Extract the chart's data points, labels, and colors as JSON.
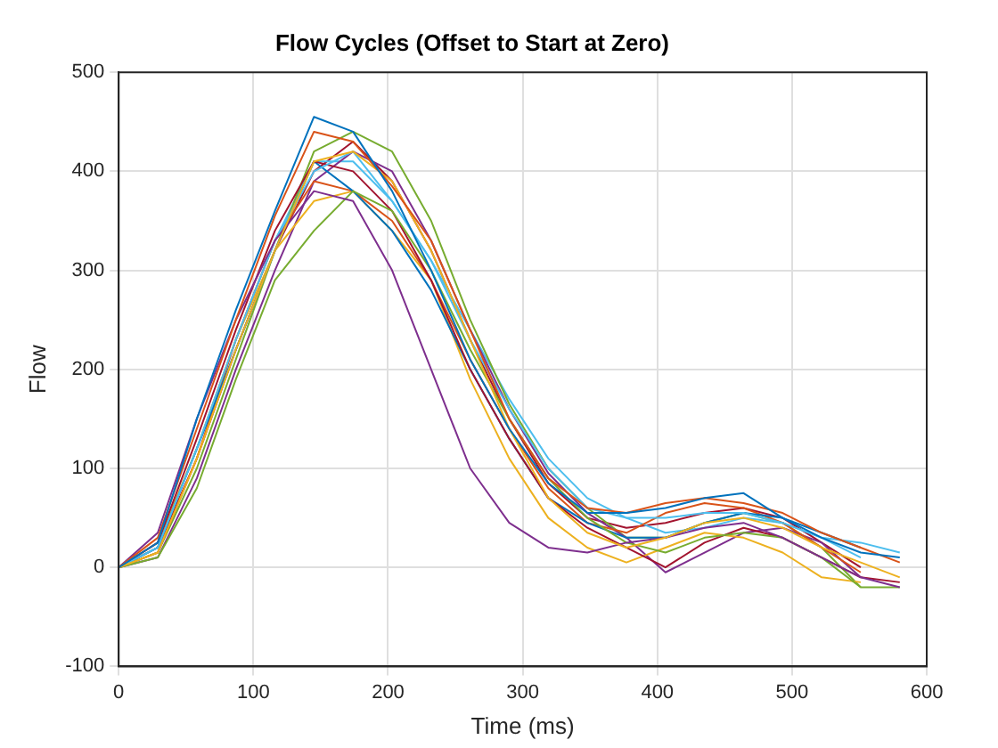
{
  "chart_data": {
    "type": "line",
    "title": "Flow Cycles (Offset to Start at Zero)",
    "xlabel": "Time (ms)",
    "ylabel": "Flow",
    "x": [
      0,
      29,
      58,
      87,
      116,
      145,
      174,
      203,
      232,
      261,
      290,
      319,
      348,
      377,
      406,
      435,
      464,
      493,
      522,
      551,
      580
    ],
    "xlim": [
      0,
      600
    ],
    "xticks": [
      0,
      100,
      200,
      300,
      400,
      500,
      600
    ],
    "ylim": [
      -100,
      500
    ],
    "yticks": [
      -100,
      0,
      100,
      200,
      300,
      400,
      500
    ],
    "grid": true,
    "legend": false,
    "marker": "none",
    "line_style": "solid",
    "series": [
      {
        "color": "#0072bd",
        "values": [
          0,
          25,
          150,
          260,
          360,
          455,
          440,
          380,
          300,
          210,
          140,
          85,
          55,
          55,
          60,
          70,
          75,
          50,
          30,
          15,
          10
        ]
      },
      {
        "color": "#d95319",
        "values": [
          0,
          30,
          140,
          250,
          355,
          440,
          430,
          385,
          330,
          240,
          150,
          90,
          60,
          55,
          65,
          70,
          65,
          55,
          35,
          20,
          5
        ]
      },
      {
        "color": "#edb120",
        "values": [
          0,
          15,
          110,
          220,
          320,
          410,
          420,
          390,
          320,
          230,
          140,
          70,
          35,
          20,
          30,
          45,
          50,
          40,
          20,
          5,
          -10
        ]
      },
      {
        "color": "#7e2f8e",
        "values": [
          0,
          35,
          150,
          250,
          330,
          380,
          370,
          300,
          200,
          100,
          45,
          20,
          15,
          25,
          30,
          40,
          45,
          30,
          10,
          -10,
          -20
        ]
      },
      {
        "color": "#77ac30",
        "values": [
          0,
          10,
          80,
          190,
          290,
          340,
          380,
          360,
          300,
          220,
          150,
          90,
          50,
          25,
          15,
          30,
          35,
          30,
          10,
          -20,
          -20
        ]
      },
      {
        "color": "#4dbeee",
        "values": [
          0,
          20,
          120,
          230,
          330,
          400,
          420,
          370,
          310,
          230,
          160,
          100,
          60,
          50,
          50,
          55,
          55,
          45,
          30,
          25,
          15
        ]
      },
      {
        "color": "#a2142f",
        "values": [
          0,
          25,
          130,
          240,
          340,
          410,
          400,
          360,
          290,
          200,
          130,
          70,
          40,
          20,
          0,
          25,
          40,
          30,
          10,
          -10,
          -15
        ]
      },
      {
        "color": "#0072bd",
        "values": [
          0,
          20,
          120,
          220,
          320,
          410,
          380,
          340,
          280,
          200,
          130,
          70,
          45,
          30,
          30,
          45,
          55,
          50,
          35,
          20,
          null
        ]
      },
      {
        "color": "#d95319",
        "values": [
          0,
          15,
          110,
          230,
          330,
          390,
          380,
          350,
          290,
          210,
          140,
          80,
          45,
          35,
          55,
          65,
          60,
          45,
          20,
          -5,
          null
        ]
      },
      {
        "color": "#edb120",
        "values": [
          0,
          25,
          120,
          230,
          320,
          370,
          380,
          340,
          290,
          190,
          110,
          50,
          20,
          5,
          20,
          35,
          30,
          15,
          -10,
          -15,
          null
        ]
      },
      {
        "color": "#7e2f8e",
        "values": [
          0,
          10,
          90,
          200,
          300,
          390,
          420,
          400,
          330,
          240,
          160,
          95,
          55,
          30,
          -5,
          15,
          35,
          40,
          25,
          -10,
          null
        ]
      },
      {
        "color": "#77ac30",
        "values": [
          0,
          15,
          100,
          210,
          320,
          420,
          440,
          420,
          350,
          250,
          165,
          100,
          60,
          30,
          30,
          45,
          55,
          45,
          20,
          -20,
          null
        ]
      },
      {
        "color": "#4dbeee",
        "values": [
          0,
          20,
          120,
          230,
          330,
          410,
          410,
          370,
          310,
          240,
          170,
          110,
          70,
          50,
          35,
          40,
          50,
          45,
          30,
          10,
          null
        ]
      },
      {
        "color": "#a2142f",
        "values": [
          0,
          20,
          110,
          220,
          320,
          400,
          430,
          390,
          320,
          230,
          150,
          85,
          50,
          40,
          45,
          55,
          60,
          50,
          25,
          0,
          null
        ]
      }
    ]
  }
}
